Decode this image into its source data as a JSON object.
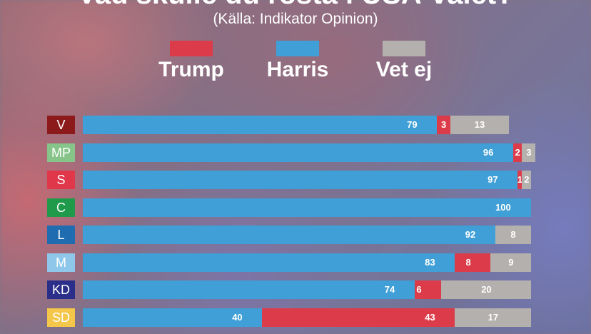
{
  "headline": "Vad skulle du rösta i USA-valet?",
  "subtitle": "(Källa: Indikator Opinion)",
  "colors": {
    "trump": "#dc3c4a",
    "harris": "#3f9fd6",
    "vet_ej": "#b4b0ad"
  },
  "chart_data": {
    "type": "bar",
    "orientation": "horizontal",
    "stacked": true,
    "categories": [
      "V",
      "MP",
      "S",
      "C",
      "L",
      "M",
      "KD",
      "SD"
    ],
    "category_colors": [
      "#8c1a1a",
      "#86c48a",
      "#e0374a",
      "#1e9a4a",
      "#1f6cb0",
      "#8ec7ea",
      "#2b2f8a",
      "#f4c64a"
    ],
    "series": [
      {
        "name": "Harris",
        "color": "#3f9fd6",
        "values": [
          79,
          96,
          97,
          100,
          92,
          83,
          74,
          40
        ]
      },
      {
        "name": "Trump",
        "color": "#dc3c4a",
        "values": [
          3,
          2,
          1,
          0,
          0,
          8,
          6,
          43
        ]
      },
      {
        "name": "Vet ej",
        "color": "#b4b0ad",
        "values": [
          13,
          3,
          2,
          0,
          8,
          9,
          20,
          17
        ]
      }
    ],
    "xlim": [
      0,
      100
    ],
    "legend": "top",
    "grid": false
  }
}
